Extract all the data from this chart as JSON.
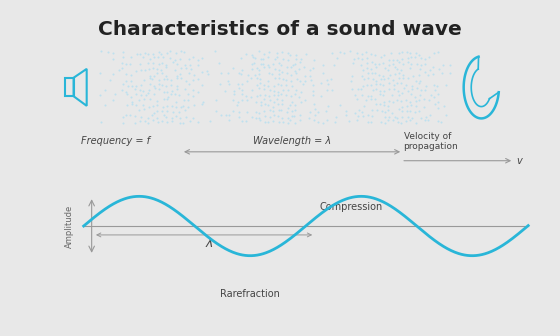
{
  "title": "Characteristics of a sound wave",
  "bg_color": "#ffffff",
  "outer_bg": "#e8e8e8",
  "wave_color": "#29b6d8",
  "axis_color": "#999999",
  "text_color": "#666666",
  "dark_text": "#444444",
  "dot_color": "#b8dff0",
  "frequency_label": "Frequency = f",
  "wavelength_label": "Wavelength = λ",
  "velocity_label": "Velocity of\npropagation",
  "velocity_v": "v",
  "amplitude_label": "Amplitude",
  "lambda_label": "λ",
  "compression_label": "Compression",
  "rarefraction_label": "Rarefraction"
}
